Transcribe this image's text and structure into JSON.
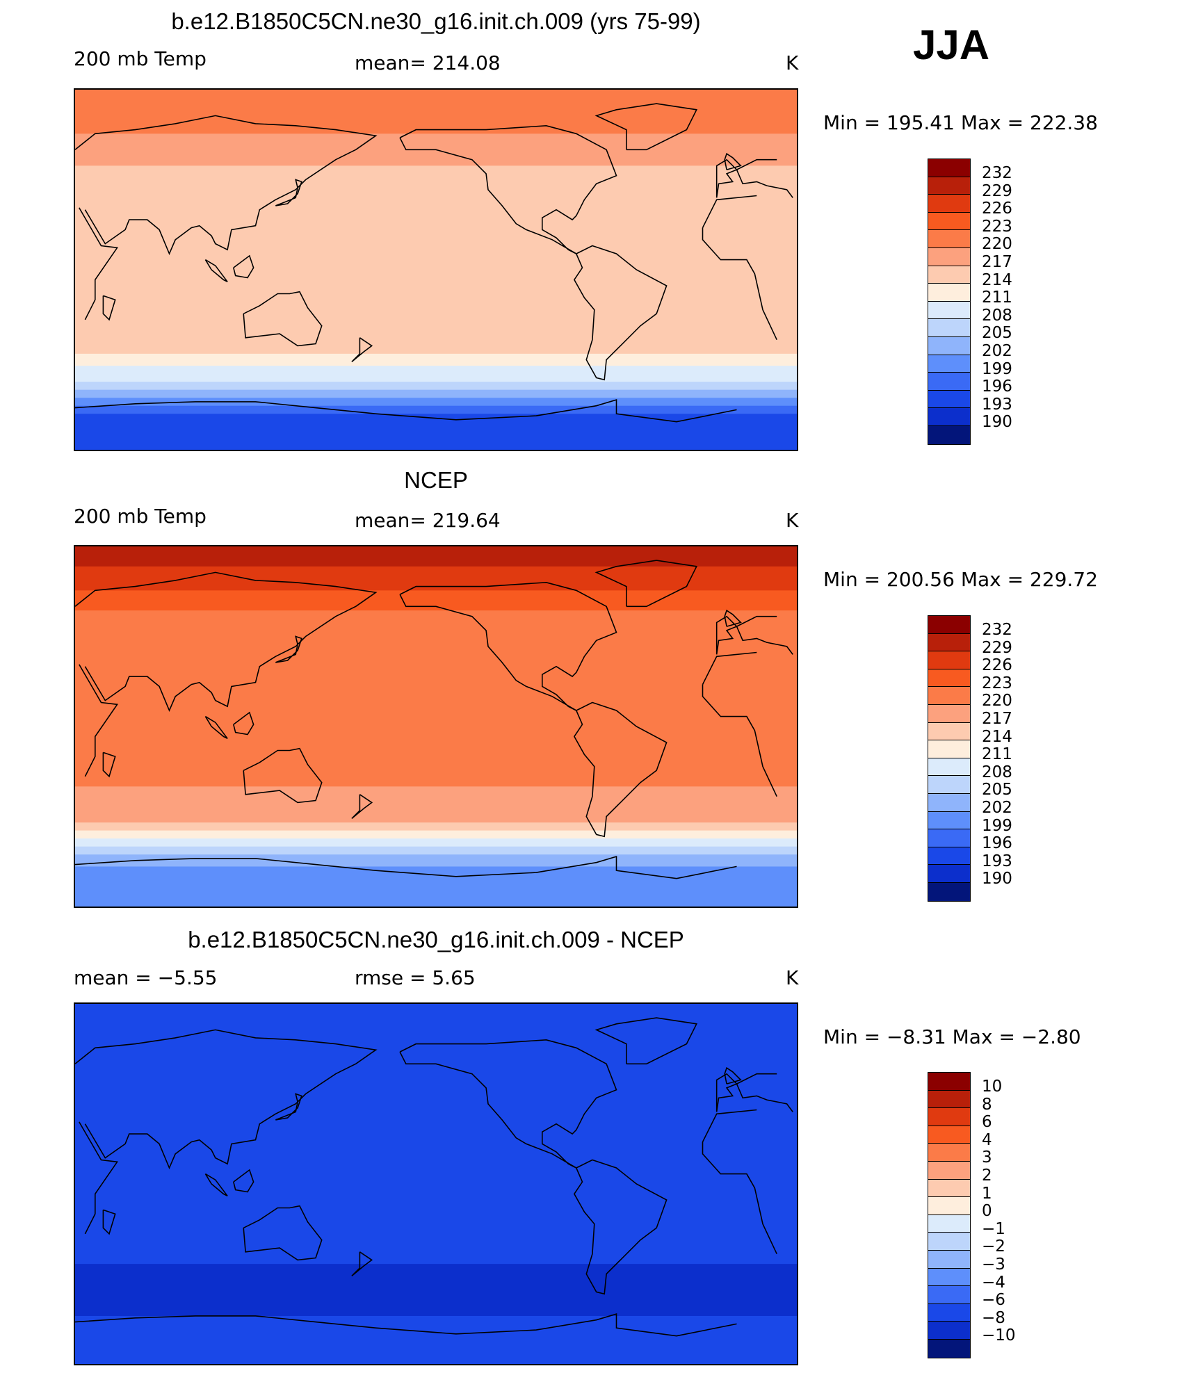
{
  "season": "JJA",
  "coast_color": "#000000",
  "panels": [
    {
      "id": "model",
      "title": "b.e12.B1850C5CN.ne30_g16.init.ch.009 (yrs 75-99)",
      "left_label": "200 mb Temp",
      "stat_label": "mean=  214.08",
      "units": "K",
      "minmax": "Min  =  195.41  Max  =  222.38",
      "levels": [
        "232",
        "229",
        "226",
        "223",
        "220",
        "217",
        "214",
        "211",
        "208",
        "205",
        "202",
        "199",
        "196",
        "193",
        "190"
      ],
      "colors": [
        "#8b0000",
        "#b8200a",
        "#e03a10",
        "#f85a20",
        "#fb7b48",
        "#fca17e",
        "#fdcbb0",
        "#feeedd",
        "#dcebfb",
        "#bdd5fb",
        "#8fb4fb",
        "#5e8ffb",
        "#3a6af5",
        "#1a48e8",
        "#0c2fcc",
        "#03157a"
      ],
      "field_bands": [
        {
          "band": 1,
          "lat_top": 90,
          "lat_bottom": 68,
          "color": "#fb7b48"
        },
        {
          "band": 2,
          "lat_top": 68,
          "lat_bottom": 52,
          "color": "#fca17e"
        },
        {
          "band": 3,
          "lat_top": 52,
          "lat_bottom": -42,
          "color": "#fdcbb0"
        },
        {
          "band": 4,
          "lat_top": -42,
          "lat_bottom": -48,
          "color": "#feeedd"
        },
        {
          "band": 5,
          "lat_top": -48,
          "lat_bottom": -56,
          "color": "#dcebfb"
        },
        {
          "band": 6,
          "lat_top": -56,
          "lat_bottom": -60,
          "color": "#bdd5fb"
        },
        {
          "band": 7,
          "lat_top": -60,
          "lat_bottom": -64,
          "color": "#8fb4fb"
        },
        {
          "band": 8,
          "lat_top": -64,
          "lat_bottom": -68,
          "color": "#5e8ffb"
        },
        {
          "band": 9,
          "lat_top": -68,
          "lat_bottom": -72,
          "color": "#3a6af5"
        },
        {
          "band": 10,
          "lat_top": -72,
          "lat_bottom": -90,
          "color": "#1a48e8"
        }
      ]
    },
    {
      "id": "obs",
      "title": "NCEP",
      "left_label": "200 mb Temp",
      "stat_label": "mean=  219.64",
      "units": "K",
      "minmax": "Min  =  200.56  Max  =  229.72",
      "levels": [
        "232",
        "229",
        "226",
        "223",
        "220",
        "217",
        "214",
        "211",
        "208",
        "205",
        "202",
        "199",
        "196",
        "193",
        "190"
      ],
      "colors": [
        "#8b0000",
        "#b8200a",
        "#e03a10",
        "#f85a20",
        "#fb7b48",
        "#fca17e",
        "#fdcbb0",
        "#feeedd",
        "#dcebfb",
        "#bdd5fb",
        "#8fb4fb",
        "#5e8ffb",
        "#3a6af5",
        "#1a48e8",
        "#0c2fcc",
        "#03157a"
      ],
      "field_bands": [
        {
          "band": 1,
          "lat_top": 90,
          "lat_bottom": 80,
          "color": "#b8200a"
        },
        {
          "band": 2,
          "lat_top": 80,
          "lat_bottom": 68,
          "color": "#e03a10"
        },
        {
          "band": 3,
          "lat_top": 68,
          "lat_bottom": 58,
          "color": "#f85a20"
        },
        {
          "band": 4,
          "lat_top": 58,
          "lat_bottom": 48,
          "color": "#fb7b48"
        },
        {
          "band": 5,
          "lat_top": 48,
          "lat_bottom": -30,
          "color": "#fb7b48"
        },
        {
          "band": 6,
          "lat_top": -30,
          "lat_bottom": -48,
          "color": "#fca17e"
        },
        {
          "band": 7,
          "lat_top": -48,
          "lat_bottom": -52,
          "color": "#fdcbb0"
        },
        {
          "band": 8,
          "lat_top": -52,
          "lat_bottom": -56,
          "color": "#feeedd"
        },
        {
          "band": 9,
          "lat_top": -56,
          "lat_bottom": -60,
          "color": "#dcebfb"
        },
        {
          "band": 10,
          "lat_top": -60,
          "lat_bottom": -64,
          "color": "#bdd5fb"
        },
        {
          "band": 11,
          "lat_top": -64,
          "lat_bottom": -70,
          "color": "#8fb4fb"
        },
        {
          "band": 12,
          "lat_top": -70,
          "lat_bottom": -90,
          "color": "#5e8ffb"
        }
      ]
    },
    {
      "id": "diff",
      "title": "b.e12.B1850C5CN.ne30_g16.init.ch.009 - NCEP",
      "left_label": "mean  =    −5.55",
      "stat_label": "rmse  =     5.65",
      "units": "K",
      "minmax": "Min  =    −8.31  Max  =    −2.80",
      "levels": [
        "10",
        "8",
        "6",
        "4",
        "3",
        "2",
        "1",
        "0",
        "−1",
        "−2",
        "−3",
        "−4",
        "−6",
        "−8",
        "−10"
      ],
      "colors": [
        "#8b0000",
        "#b8200a",
        "#e03a10",
        "#f85a20",
        "#fb7b48",
        "#fca17e",
        "#fdcbb0",
        "#feeedd",
        "#dcebfb",
        "#bdd5fb",
        "#8fb4fb",
        "#5e8ffb",
        "#3a6af5",
        "#1a48e8",
        "#0c2fcc",
        "#03157a"
      ],
      "field_bands": [
        {
          "band": 1,
          "lat_top": 90,
          "lat_bottom": 78,
          "color": "#1a48e8"
        },
        {
          "band": 2,
          "lat_top": 78,
          "lat_bottom": -20,
          "color": "#1a48e8"
        },
        {
          "band": 3,
          "lat_top": -20,
          "lat_bottom": -40,
          "color": "#1a48e8"
        },
        {
          "band": 4,
          "lat_top": -40,
          "lat_bottom": -66,
          "color": "#0c2fcc"
        },
        {
          "band": 5,
          "lat_top": -66,
          "lat_bottom": -90,
          "color": "#1a48e8"
        }
      ]
    }
  ]
}
